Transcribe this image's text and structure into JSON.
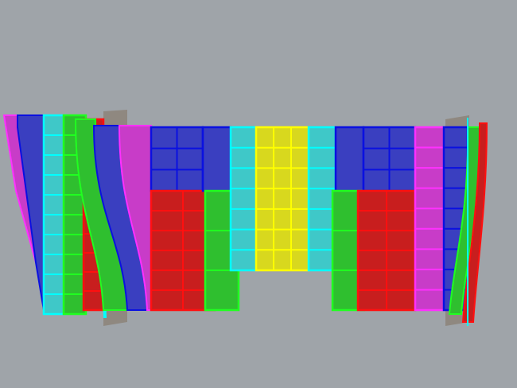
{
  "viewport": {
    "background": "#9fa4a9",
    "colors": {
      "blue": "#3a3fc0",
      "blue_edge": "#0a10e0",
      "red": "#c81e1e",
      "red_edge": "#ff1010",
      "green": "#2fbf2f",
      "green_edge": "#20ff20",
      "cyan": "#3fc8c8",
      "cyan_edge": "#00ffff",
      "yellow": "#d8d81e",
      "yellow_edge": "#ffff00",
      "magenta": "#c83cc8",
      "magenta_edge": "#ff30ff",
      "back_panel": "#8f8880"
    }
  }
}
